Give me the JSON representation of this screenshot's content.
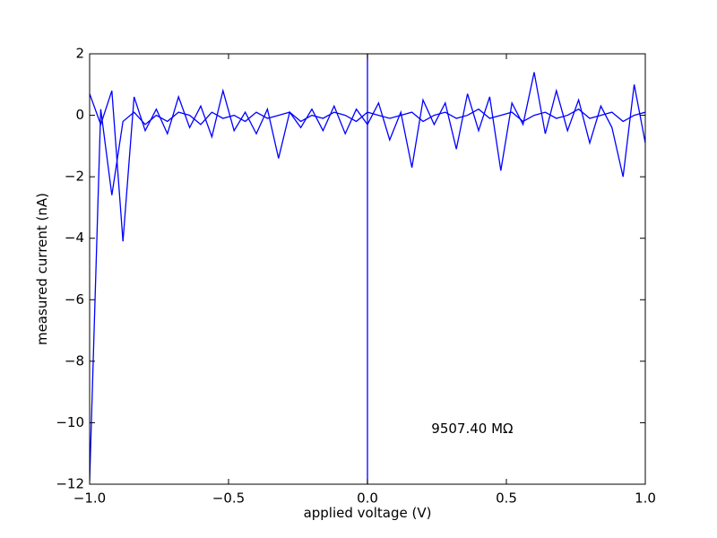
{
  "chart_data": {
    "type": "line",
    "x_label": "applied voltage (V)",
    "y_label": "measured current (nA)",
    "annotation": "9507.40 MΩ",
    "annotation_x": 0.23,
    "annotation_y": -10.2,
    "vline_x": 0,
    "x": [
      -1,
      -0.96,
      -0.92,
      -0.88,
      -0.84,
      -0.8,
      -0.76,
      -0.72,
      -0.68,
      -0.64,
      -0.6,
      -0.56,
      -0.52,
      -0.48,
      -0.44,
      -0.4,
      -0.36,
      -0.32,
      -0.28,
      -0.24,
      -0.2,
      -0.16,
      -0.12,
      -0.08,
      -0.04,
      0,
      0.04,
      0.08,
      0.12,
      0.16,
      0.2,
      0.24,
      0.28,
      0.32,
      0.36,
      0.4,
      0.44,
      0.48,
      0.52,
      0.56,
      0.6,
      0.64,
      0.68,
      0.72,
      0.76,
      0.8,
      0.84,
      0.88,
      0.92,
      0.96,
      1
    ],
    "series": [
      {
        "color": "#0000ff",
        "values": [
          0.7,
          -0.3,
          0.8,
          -4.1,
          0.6,
          -0.5,
          0.2,
          -0.6,
          0.6,
          -0.4,
          0.3,
          -0.7,
          0.8,
          -0.5,
          0.1,
          -0.6,
          0.2,
          -1.4,
          0.1,
          -0.4,
          0.2,
          -0.5,
          0.3,
          -0.6,
          0.2,
          -0.3,
          0.4,
          -0.8,
          0.1,
          -1.7,
          0.5,
          -0.3,
          0.4,
          -1.1,
          0.7,
          -0.5,
          0.6,
          -1.8,
          0.4,
          -0.3,
          1.4,
          -0.6,
          0.8,
          -0.5,
          0.5,
          -0.9,
          0.3,
          -0.4,
          -2.0,
          1.0,
          -0.9
        ]
      },
      {
        "color": "#0000ff",
        "values": [
          -11.9,
          0.2,
          -2.6,
          -0.2,
          0.1,
          -0.3,
          0,
          -0.2,
          0.1,
          0,
          -0.3,
          0.1,
          -0.1,
          0,
          -0.2,
          0.1,
          -0.1,
          0,
          0.1,
          -0.2,
          0,
          -0.1,
          0.1,
          0,
          -0.2,
          0.1,
          0,
          -0.1,
          0,
          0.1,
          -0.2,
          0,
          0.1,
          -0.1,
          0,
          0.2,
          -0.1,
          0,
          0.1,
          -0.2,
          0,
          0.1,
          -0.1,
          0,
          0.2,
          -0.1,
          0,
          0.1,
          -0.2,
          0,
          0.1
        ]
      }
    ],
    "xlim": [
      -1,
      1
    ],
    "xticks": [
      {
        "value": -1,
        "label": "−1.0"
      },
      {
        "value": -0.5,
        "label": "−0.5"
      },
      {
        "value": 0,
        "label": "0.0"
      },
      {
        "value": 0.5,
        "label": "0.5"
      },
      {
        "value": 1,
        "label": "1.0"
      }
    ],
    "ylim": [
      -12,
      2
    ],
    "yticks": [
      {
        "value": -12,
        "label": "−12"
      },
      {
        "value": -10,
        "label": "−10"
      },
      {
        "value": -8,
        "label": "−8"
      },
      {
        "value": -6,
        "label": "−6"
      },
      {
        "value": -4,
        "label": "−4"
      },
      {
        "value": -2,
        "label": "−2"
      },
      0,
      2
    ],
    "grid": false
  }
}
